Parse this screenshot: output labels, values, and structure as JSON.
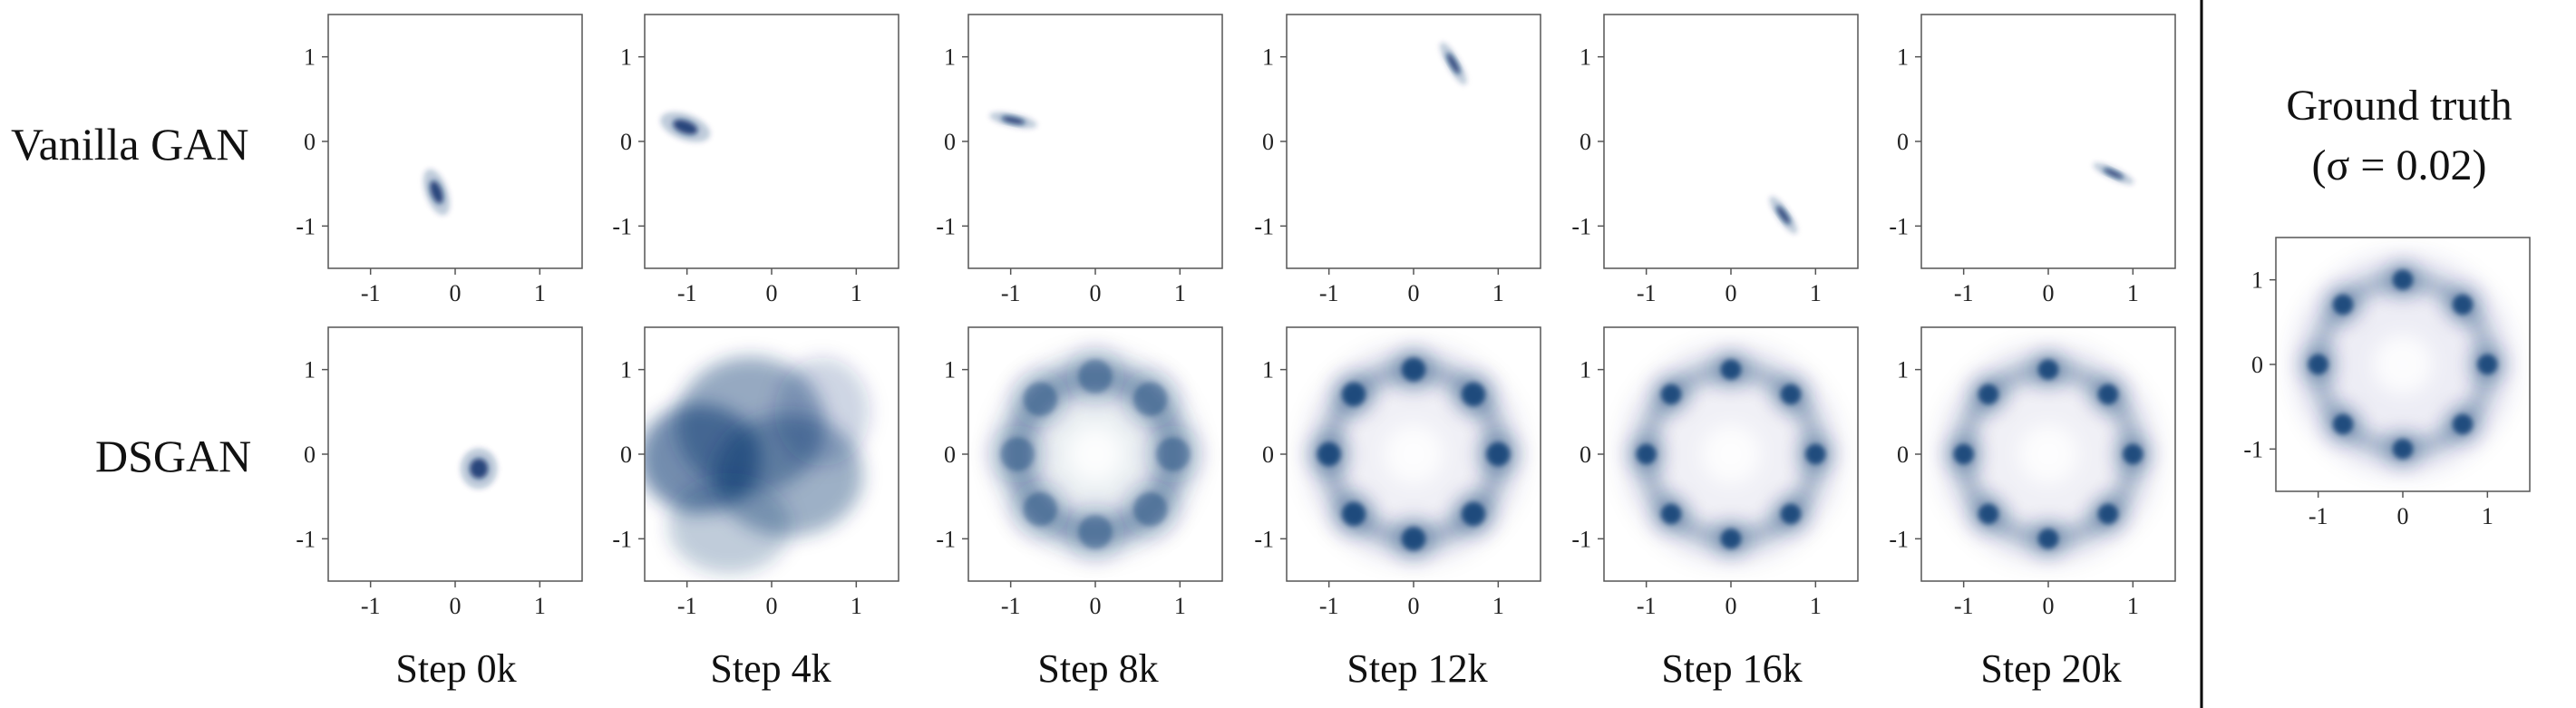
{
  "row_labels": [
    "Vanilla GAN",
    "DSGAN"
  ],
  "step_labels": [
    "Step 0k",
    "Step 4k",
    "Step 8k",
    "Step 12k",
    "Step 16k",
    "Step 20k"
  ],
  "ground_truth": {
    "title_line1": "Ground truth",
    "title_line2": "(σ = 0.02)"
  },
  "colors": {
    "density": "#08306b",
    "frame": "#555555",
    "divider": "#000000"
  },
  "chart_data": {
    "type": "heatmap",
    "xlim": [
      -1.5,
      1.5
    ],
    "ylim": [
      -1.5,
      1.5
    ],
    "xticks": [
      -1,
      0,
      1
    ],
    "yticks": [
      -1,
      0,
      1
    ],
    "xtick_labels": [
      "-1",
      "0",
      "1"
    ],
    "ytick_labels": [
      "1",
      "0",
      "-1"
    ],
    "grid": false,
    "panels": [
      {
        "row": "Vanilla GAN",
        "step": "Step 0k",
        "blobs": [
          {
            "x": -0.22,
            "y": -0.6,
            "sx": 0.06,
            "sy": 0.13,
            "angle": 20,
            "w": 1
          }
        ]
      },
      {
        "row": "Vanilla GAN",
        "step": "Step 4k",
        "blobs": [
          {
            "x": -1.02,
            "y": 0.17,
            "sx": 0.14,
            "sy": 0.07,
            "angle": -20,
            "w": 1
          }
        ]
      },
      {
        "row": "Vanilla GAN",
        "step": "Step 8k",
        "blobs": [
          {
            "x": -0.97,
            "y": 0.25,
            "sx": 0.13,
            "sy": 0.035,
            "angle": -12,
            "w": 1
          }
        ]
      },
      {
        "row": "Vanilla GAN",
        "step": "Step 12k",
        "blobs": [
          {
            "x": 0.47,
            "y": 0.92,
            "sx": 0.035,
            "sy": 0.13,
            "angle": 30,
            "w": 1
          }
        ]
      },
      {
        "row": "Vanilla GAN",
        "step": "Step 16k",
        "blobs": [
          {
            "x": 0.62,
            "y": -0.87,
            "sx": 0.035,
            "sy": 0.12,
            "angle": 35,
            "w": 1
          }
        ]
      },
      {
        "row": "Vanilla GAN",
        "step": "Step 20k",
        "blobs": [
          {
            "x": 0.77,
            "y": -0.38,
            "sx": 0.12,
            "sy": 0.03,
            "angle": -25,
            "w": 1
          }
        ]
      },
      {
        "row": "DSGAN",
        "step": "Step 0k",
        "blobs": [
          {
            "x": 0.28,
            "y": -0.17,
            "sx": 0.1,
            "sy": 0.11,
            "angle": 0,
            "w": 1
          }
        ]
      },
      {
        "row": "DSGAN",
        "step": "Step 4k",
        "pattern": "spread",
        "blobs": [
          {
            "x": -0.85,
            "y": -0.05,
            "sx": 0.45,
            "sy": 0.4,
            "angle": 0,
            "w": 1.0
          },
          {
            "x": -0.25,
            "y": 0.35,
            "sx": 0.55,
            "sy": 0.5,
            "angle": 0,
            "w": 0.75
          },
          {
            "x": 0.2,
            "y": -0.25,
            "sx": 0.55,
            "sy": 0.45,
            "angle": 0,
            "w": 0.7
          },
          {
            "x": 0.6,
            "y": 0.5,
            "sx": 0.35,
            "sy": 0.4,
            "angle": 0,
            "w": 0.35
          },
          {
            "x": -0.5,
            "y": -0.85,
            "sx": 0.45,
            "sy": 0.35,
            "angle": 0,
            "w": 0.45
          }
        ]
      },
      {
        "row": "DSGAN",
        "step": "Step 8k",
        "pattern": "ring",
        "ring": {
          "radius": 0.92,
          "width": 0.17,
          "modes": 8,
          "mode_sigma": 0.2,
          "mode_weight": 0.5,
          "hole_fill": 0.08
        }
      },
      {
        "row": "DSGAN",
        "step": "Step 12k",
        "pattern": "ring",
        "ring": {
          "radius": 1.0,
          "width": 0.12,
          "modes": 8,
          "mode_sigma": 0.14,
          "mode_weight": 1.0,
          "hole_fill": 0.06
        }
      },
      {
        "row": "DSGAN",
        "step": "Step 16k",
        "pattern": "ring",
        "ring": {
          "radius": 1.0,
          "width": 0.11,
          "modes": 8,
          "mode_sigma": 0.12,
          "mode_weight": 1.0,
          "hole_fill": 0.06
        }
      },
      {
        "row": "DSGAN",
        "step": "Step 20k",
        "pattern": "ring",
        "ring": {
          "radius": 1.0,
          "width": 0.11,
          "modes": 8,
          "mode_sigma": 0.12,
          "mode_weight": 1.0,
          "hole_fill": 0.06
        }
      }
    ],
    "ground_truth_panel": {
      "pattern": "ring",
      "ring": {
        "radius": 1.0,
        "width": 0.1,
        "modes": 8,
        "mode_sigma": 0.12,
        "mode_weight": 1.0,
        "hole_fill": 0.07
      }
    }
  }
}
